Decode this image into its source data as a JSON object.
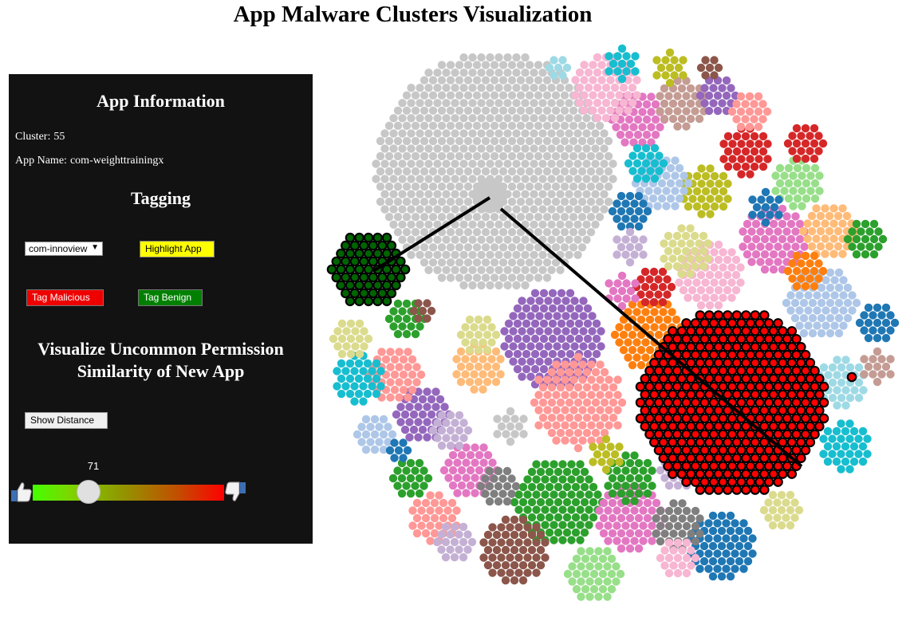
{
  "page": {
    "title": "App Malware Clusters Visualization"
  },
  "panel": {
    "info_heading": "App Information",
    "cluster_label": "Cluster:",
    "cluster_value": "55",
    "app_name_label": "App Name:",
    "app_name_value": "com-weighttrainingx",
    "tagging_heading": "Tagging",
    "app_select_value": "com-innoview",
    "highlight_button": "Highlight App",
    "tag_malicious_button": "Tag Malicious",
    "tag_benign_button": "Tag Benign",
    "visualize_heading": "Visualize Uncommon Permission Similarity of New App",
    "show_distance_button": "Show Distance",
    "slider_value": "71",
    "slider_fraction": 0.29,
    "thumbs_up_icon": "thumbs-up-icon",
    "thumbs_down_icon": "thumbs-down-icon"
  },
  "colors": {
    "panel_bg": "#121212",
    "highlight": "#ffff00",
    "malicious": "#ee0000",
    "benign": "#008000",
    "link_line": "#000000",
    "node_border": "#000000"
  },
  "visualization": {
    "type": "packed-cluster-bubbles",
    "link_count": 2,
    "highlighted_malicious_cluster": true,
    "highlighted_benign_cluster": true
  }
}
